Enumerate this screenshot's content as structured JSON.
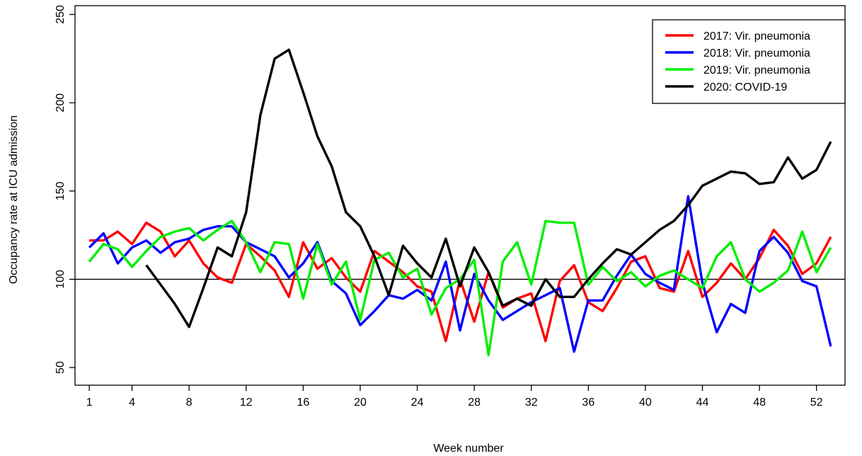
{
  "chart_data": {
    "type": "line",
    "xlabel": "Week number",
    "ylabel": "Occupancy rate at ICU admission",
    "xlim": [
      0,
      54
    ],
    "ylim": [
      40,
      255
    ],
    "x_ticks": [
      1,
      4,
      8,
      12,
      16,
      20,
      24,
      28,
      32,
      36,
      40,
      44,
      48,
      52
    ],
    "y_ticks": [
      50,
      100,
      150,
      200,
      250
    ],
    "reference_line": 100,
    "grid": false,
    "legend_position": "top-right",
    "series": [
      {
        "name": "2017: Vir. pneumonia",
        "color": "#ff0000",
        "x": [
          1,
          2,
          3,
          4,
          5,
          6,
          7,
          8,
          9,
          10,
          11,
          12,
          13,
          14,
          15,
          16,
          17,
          18,
          19,
          20,
          21,
          22,
          23,
          24,
          25,
          26,
          27,
          28,
          29,
          30,
          31,
          32,
          33,
          34,
          35,
          36,
          37,
          38,
          39,
          40,
          41,
          42,
          43,
          44,
          45,
          46,
          47,
          48,
          49,
          50,
          51,
          52,
          53
        ],
        "values": [
          122,
          122,
          127,
          120,
          132,
          127,
          113,
          122,
          109,
          101,
          98,
          120,
          113,
          105,
          90,
          121,
          106,
          112,
          101,
          93,
          116,
          110,
          104,
          96,
          93,
          65,
          100,
          76,
          104,
          84,
          89,
          92,
          65,
          99,
          108,
          87,
          82,
          95,
          110,
          113,
          95,
          93,
          116,
          90,
          98,
          109,
          100,
          112,
          128,
          119,
          103,
          109,
          124
        ]
      },
      {
        "name": "2018: Vir. pneumonia",
        "color": "#0000ff",
        "x": [
          1,
          2,
          3,
          4,
          5,
          6,
          7,
          8,
          9,
          10,
          11,
          12,
          13,
          14,
          15,
          16,
          17,
          18,
          19,
          20,
          21,
          22,
          23,
          24,
          25,
          26,
          27,
          28,
          29,
          30,
          31,
          32,
          33,
          34,
          35,
          36,
          37,
          38,
          39,
          40,
          41,
          42,
          43,
          44,
          45,
          46,
          47,
          48,
          49,
          50,
          51,
          52,
          53
        ],
        "values": [
          118,
          126,
          109,
          118,
          122,
          115,
          121,
          123,
          128,
          130,
          130,
          121,
          117,
          113,
          101,
          109,
          121,
          99,
          92,
          74,
          82,
          91,
          89,
          94,
          88,
          110,
          71,
          103,
          88,
          77,
          82,
          87,
          91,
          95,
          59,
          88,
          88,
          102,
          114,
          103,
          98,
          94,
          147,
          98,
          70,
          86,
          81,
          116,
          124,
          115,
          99,
          96,
          62
        ]
      },
      {
        "name": "2019: Vir. pneumonia",
        "color": "#00ee00",
        "x": [
          1,
          2,
          3,
          4,
          5,
          6,
          7,
          8,
          9,
          10,
          11,
          12,
          13,
          14,
          15,
          16,
          17,
          18,
          19,
          20,
          21,
          22,
          23,
          24,
          25,
          26,
          27,
          28,
          29,
          30,
          31,
          32,
          33,
          34,
          35,
          36,
          37,
          38,
          39,
          40,
          41,
          42,
          43,
          44,
          45,
          46,
          47,
          48,
          49,
          50,
          51,
          52,
          53
        ],
        "values": [
          110,
          120,
          117,
          107,
          116,
          124,
          127,
          129,
          122,
          128,
          133,
          121,
          104,
          121,
          120,
          89,
          120,
          97,
          110,
          77,
          111,
          115,
          101,
          106,
          80,
          95,
          100,
          111,
          57,
          110,
          121,
          97,
          133,
          132,
          132,
          97,
          107,
          99,
          104,
          96,
          102,
          105,
          100,
          95,
          113,
          121,
          100,
          93,
          98,
          105,
          127,
          104,
          118
        ]
      },
      {
        "name": "2020: COVID-19",
        "color": "#000000",
        "x": [
          5,
          6,
          7,
          8,
          9,
          10,
          11,
          12,
          13,
          14,
          15,
          16,
          17,
          18,
          19,
          20,
          21,
          22,
          23,
          24,
          25,
          26,
          27,
          28,
          29,
          30,
          31,
          32,
          33,
          34,
          35,
          36,
          37,
          38,
          39,
          40,
          41,
          42,
          43,
          44,
          45,
          46,
          47,
          48,
          49,
          50,
          51,
          52,
          53
        ],
        "values": [
          108,
          97,
          86,
          73,
          95,
          118,
          113,
          138,
          193,
          225,
          230,
          206,
          181,
          164,
          138,
          130,
          113,
          91,
          119,
          109,
          101,
          123,
          96,
          118,
          104,
          85,
          89,
          85,
          100,
          90,
          90,
          100,
          109,
          117,
          114,
          121,
          128,
          133,
          142,
          153,
          157,
          161,
          160,
          154,
          155,
          169,
          157,
          162,
          178
        ]
      }
    ]
  }
}
